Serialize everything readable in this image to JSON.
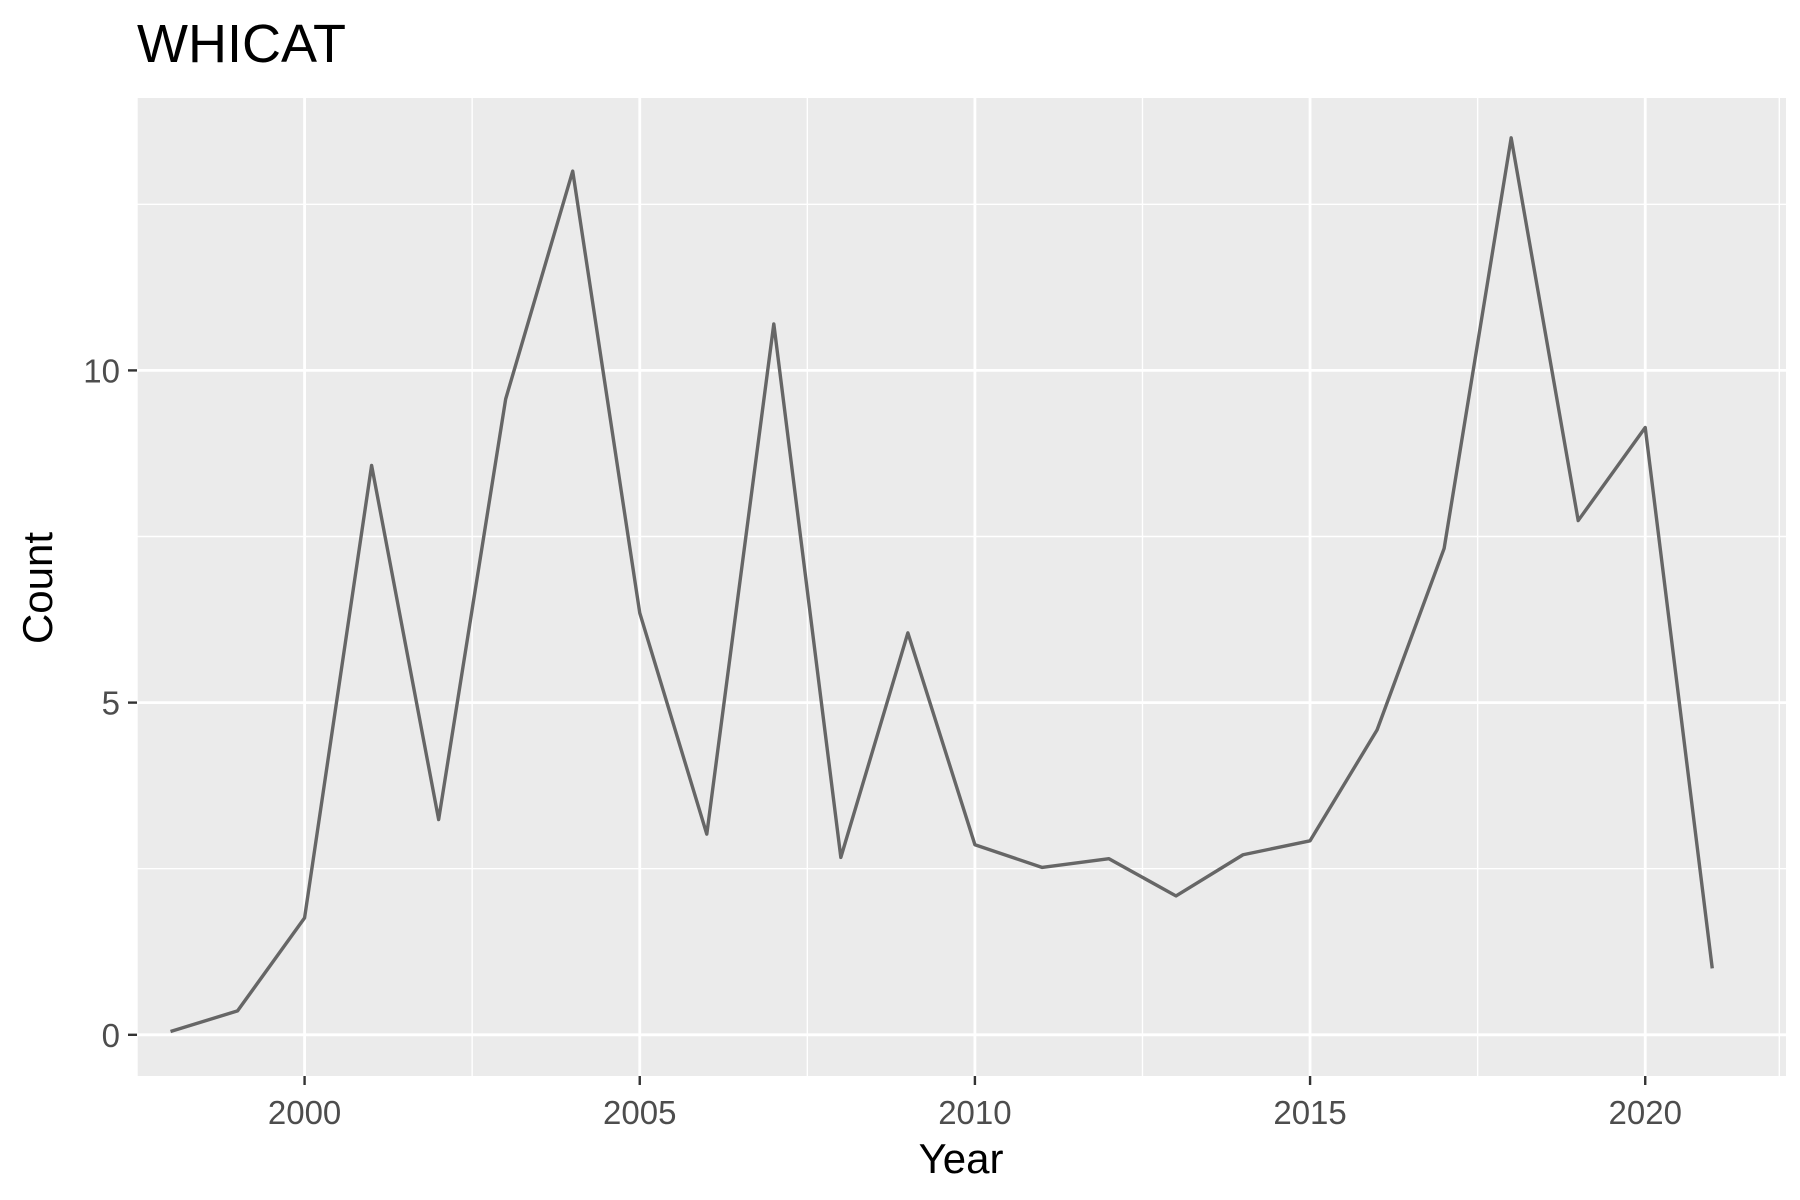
{
  "chart_data": {
    "type": "line",
    "title": "WHICAT",
    "xlabel": "Year",
    "ylabel": "Count",
    "xlim": [
      1997.5,
      2022.1
    ],
    "ylim": [
      -0.62,
      14.1
    ],
    "x_ticks": [
      2000,
      2005,
      2010,
      2015,
      2020
    ],
    "x_tick_labels": [
      "2000",
      "2005",
      "2010",
      "2015",
      "2020"
    ],
    "x_minor_ticks": [
      1997.5,
      2002.5,
      2007.5,
      2012.5,
      2017.5,
      2022
    ],
    "y_ticks": [
      0,
      5,
      10
    ],
    "y_tick_labels": [
      "0",
      "5",
      "10"
    ],
    "y_minor_ticks": [
      2.5,
      7.5,
      12.5
    ],
    "grid": true,
    "legend": "none",
    "colors": {
      "panel_background": "#ebebeb",
      "grid_line": "#ffffff",
      "series_line": "#666666",
      "tick_mark": "#333333",
      "tick_label": "#4d4d4d",
      "text": "#000000"
    },
    "series": [
      {
        "x": [
          1998,
          1999,
          2000,
          2001,
          2002,
          2003,
          2004,
          2005,
          2006,
          2007,
          2008,
          2009,
          2010,
          2011,
          2012,
          2013,
          2014,
          2015,
          2016,
          2017,
          2018,
          2019,
          2020,
          2021
        ],
        "values": [
          0.05,
          0.36,
          1.76,
          8.57,
          3.24,
          9.57,
          13.0,
          6.35,
          3.02,
          10.7,
          2.67,
          6.05,
          2.86,
          2.52,
          2.65,
          2.09,
          2.71,
          2.92,
          4.59,
          7.32,
          13.5,
          7.74,
          9.14,
          1.0
        ]
      }
    ]
  }
}
